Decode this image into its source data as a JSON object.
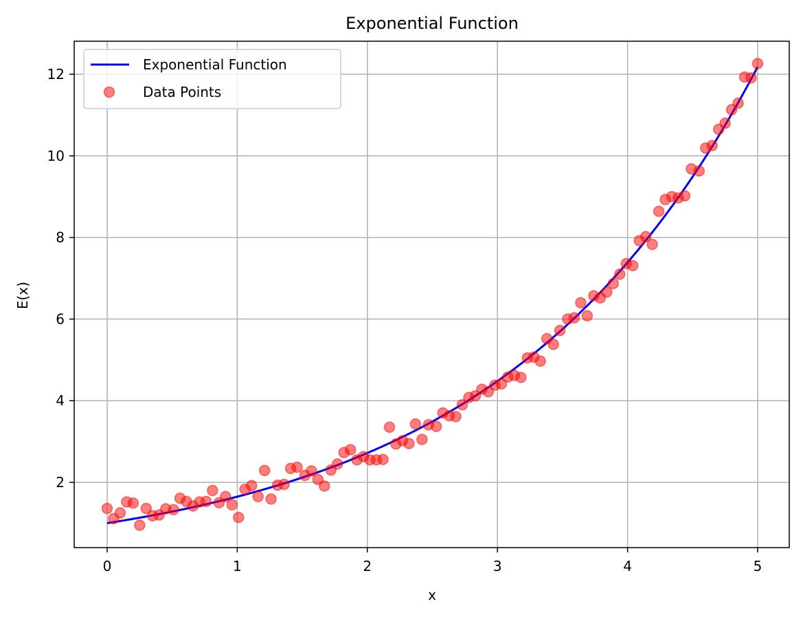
{
  "chart_data": {
    "type": "line+scatter",
    "title": "Exponential Function",
    "xlabel": "x",
    "ylabel": "E(x)",
    "xlim": [
      -0.25,
      5.25
    ],
    "ylim": [
      0.4,
      12.8
    ],
    "xticks": [
      0,
      1,
      2,
      3,
      4,
      5
    ],
    "yticks": [
      2,
      4,
      6,
      8,
      10,
      12
    ],
    "grid": true,
    "legend_position": "upper-left",
    "series": [
      {
        "name": "Exponential Function",
        "kind": "line",
        "color": "#0000ff",
        "function": "exp(0.5*x)",
        "x_range": [
          0,
          5
        ]
      },
      {
        "name": "Data Points",
        "kind": "scatter",
        "color": "#ff0000",
        "points": [
          [
            0.0,
            1.36
          ],
          [
            0.05,
            1.11
          ],
          [
            0.1,
            1.25
          ],
          [
            0.15,
            1.52
          ],
          [
            0.2,
            1.49
          ],
          [
            0.25,
            0.95
          ],
          [
            0.3,
            1.36
          ],
          [
            0.35,
            1.18
          ],
          [
            0.4,
            1.2
          ],
          [
            0.45,
            1.35
          ],
          [
            0.51,
            1.33
          ],
          [
            0.56,
            1.61
          ],
          [
            0.61,
            1.53
          ],
          [
            0.66,
            1.42
          ],
          [
            0.71,
            1.52
          ],
          [
            0.76,
            1.53
          ],
          [
            0.81,
            1.8
          ],
          [
            0.86,
            1.5
          ],
          [
            0.91,
            1.65
          ],
          [
            0.96,
            1.45
          ],
          [
            1.01,
            1.14
          ],
          [
            1.06,
            1.83
          ],
          [
            1.11,
            1.92
          ],
          [
            1.16,
            1.65
          ],
          [
            1.21,
            2.29
          ],
          [
            1.26,
            1.59
          ],
          [
            1.31,
            1.93
          ],
          [
            1.36,
            1.95
          ],
          [
            1.41,
            2.34
          ],
          [
            1.46,
            2.37
          ],
          [
            1.52,
            2.17
          ],
          [
            1.57,
            2.28
          ],
          [
            1.62,
            2.07
          ],
          [
            1.67,
            1.91
          ],
          [
            1.72,
            2.3
          ],
          [
            1.77,
            2.45
          ],
          [
            1.82,
            2.73
          ],
          [
            1.87,
            2.8
          ],
          [
            1.92,
            2.55
          ],
          [
            1.97,
            2.63
          ],
          [
            2.02,
            2.55
          ],
          [
            2.07,
            2.55
          ],
          [
            2.12,
            2.56
          ],
          [
            2.17,
            3.35
          ],
          [
            2.22,
            2.94
          ],
          [
            2.27,
            3.02
          ],
          [
            2.32,
            2.95
          ],
          [
            2.37,
            3.43
          ],
          [
            2.42,
            3.05
          ],
          [
            2.47,
            3.41
          ],
          [
            2.53,
            3.37
          ],
          [
            2.58,
            3.7
          ],
          [
            2.63,
            3.63
          ],
          [
            2.68,
            3.61
          ],
          [
            2.73,
            3.9
          ],
          [
            2.78,
            4.08
          ],
          [
            2.83,
            4.12
          ],
          [
            2.88,
            4.28
          ],
          [
            2.93,
            4.22
          ],
          [
            2.98,
            4.38
          ],
          [
            3.03,
            4.41
          ],
          [
            3.08,
            4.58
          ],
          [
            3.13,
            4.62
          ],
          [
            3.18,
            4.57
          ],
          [
            3.23,
            5.05
          ],
          [
            3.28,
            5.07
          ],
          [
            3.33,
            4.97
          ],
          [
            3.38,
            5.52
          ],
          [
            3.43,
            5.38
          ],
          [
            3.48,
            5.72
          ],
          [
            3.54,
            6.0
          ],
          [
            3.59,
            6.03
          ],
          [
            3.64,
            6.4
          ],
          [
            3.69,
            6.08
          ],
          [
            3.74,
            6.57
          ],
          [
            3.79,
            6.52
          ],
          [
            3.84,
            6.66
          ],
          [
            3.89,
            6.87
          ],
          [
            3.94,
            7.1
          ],
          [
            3.99,
            7.36
          ],
          [
            4.04,
            7.31
          ],
          [
            4.09,
            7.92
          ],
          [
            4.14,
            8.02
          ],
          [
            4.19,
            7.83
          ],
          [
            4.24,
            8.64
          ],
          [
            4.29,
            8.93
          ],
          [
            4.34,
            9.0
          ],
          [
            4.39,
            8.97
          ],
          [
            4.44,
            9.02
          ],
          [
            4.49,
            9.68
          ],
          [
            4.55,
            9.63
          ],
          [
            4.6,
            10.19
          ],
          [
            4.65,
            10.25
          ],
          [
            4.7,
            10.65
          ],
          [
            4.75,
            10.8
          ],
          [
            4.8,
            11.13
          ],
          [
            4.85,
            11.29
          ],
          [
            4.9,
            11.93
          ],
          [
            4.95,
            11.91
          ],
          [
            5.0,
            12.26
          ]
        ]
      }
    ]
  }
}
